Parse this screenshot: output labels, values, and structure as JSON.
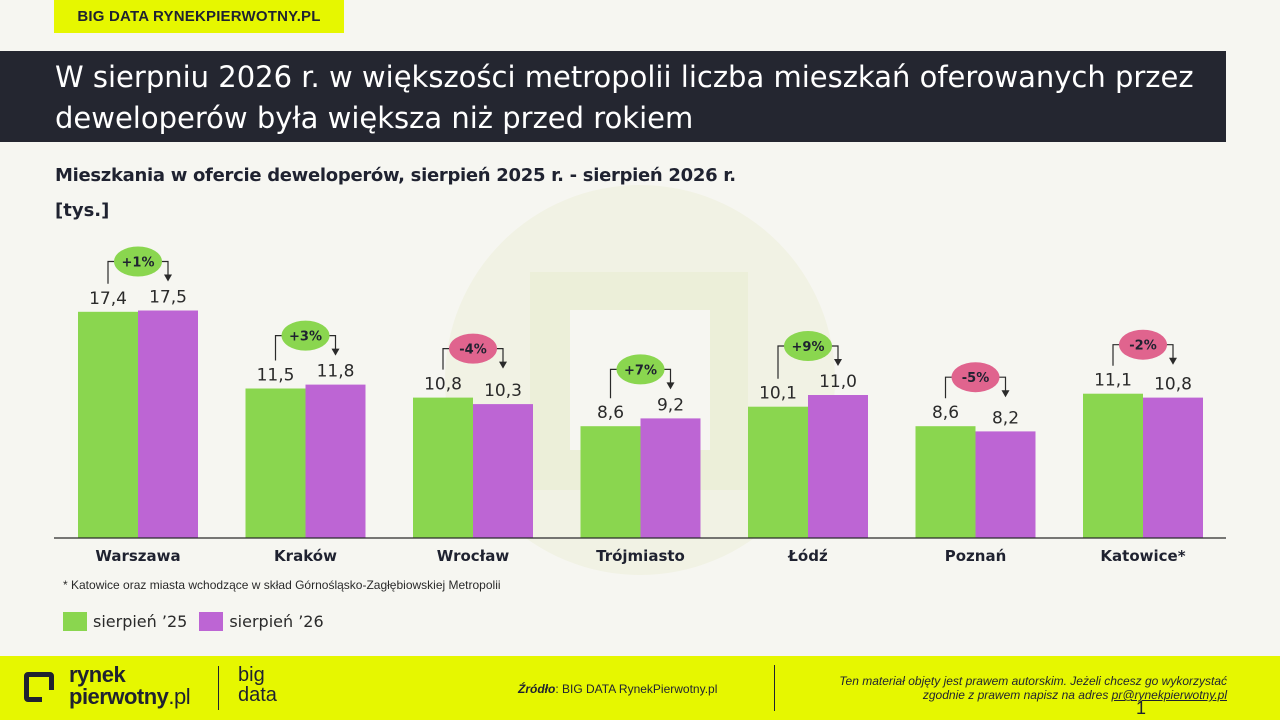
{
  "brand_tag": "BIG DATA RYNEKPIERWOTNY.PL",
  "headline": "W sierpniu 2026 r. w większości metropolii liczba mieszkań oferowanych przez deweloperów była większa niż przed rokiem",
  "subtitle": "Mieszkania w ofercie deweloperów, sierpień 2025 r. - sierpień 2026 r.",
  "unit": "[tys.]",
  "footnote": "* Katowice oraz miasta wchodzące w skład Górnośląsko-Zagłębiowskiej Metropolii",
  "legend": [
    {
      "label": "sierpień ’25",
      "color": "#8ad64f"
    },
    {
      "label": "sierpień ’26",
      "color": "#bd65d4"
    }
  ],
  "chart_data": {
    "type": "bar",
    "categories": [
      "Warszawa",
      "Kraków",
      "Wrocław",
      "Trójmiasto",
      "Łódź",
      "Poznań",
      "Katowice*"
    ],
    "series": [
      {
        "name": "sierpień ’25",
        "values": [
          17.4,
          11.5,
          10.8,
          8.6,
          10.1,
          8.6,
          11.1
        ],
        "labels": [
          "17,4",
          "11,5",
          "10,8",
          "8,6",
          "10,1",
          "8,6",
          "11,1"
        ],
        "color": "#8ad64f"
      },
      {
        "name": "sierpień ’26",
        "values": [
          17.5,
          11.8,
          10.3,
          9.2,
          11.0,
          8.2,
          10.8
        ],
        "labels": [
          "17,5",
          "11,8",
          "10,3",
          "9,2",
          "11,0",
          "8,2",
          "10,8"
        ],
        "color": "#bd65d4"
      }
    ],
    "changes": [
      "+1%",
      "+3%",
      "-4%",
      "+7%",
      "+9%",
      "-5%",
      "-2%"
    ],
    "change_colors": {
      "positive": "#8ad64f",
      "negative": "#e0648e"
    },
    "ylim": [
      0,
      20
    ],
    "grid": false
  },
  "footer": {
    "logo_line1": "rynek",
    "logo_line2": "pierwotny",
    "logo_suffix": ".pl",
    "logo_big_line1": "big",
    "logo_big_line2": "data",
    "source_label": "Źródło",
    "source_text": ": BIG DATA RynekPierwotny.pl",
    "copyright_line1": "Ten materiał objęty jest prawem autorskim. Jeżeli chcesz go wykorzystać",
    "copyright_line2": "zgodnie z prawem napisz na adres ",
    "email": "pr@rynekpierwotny.pl",
    "page_number": "1"
  }
}
